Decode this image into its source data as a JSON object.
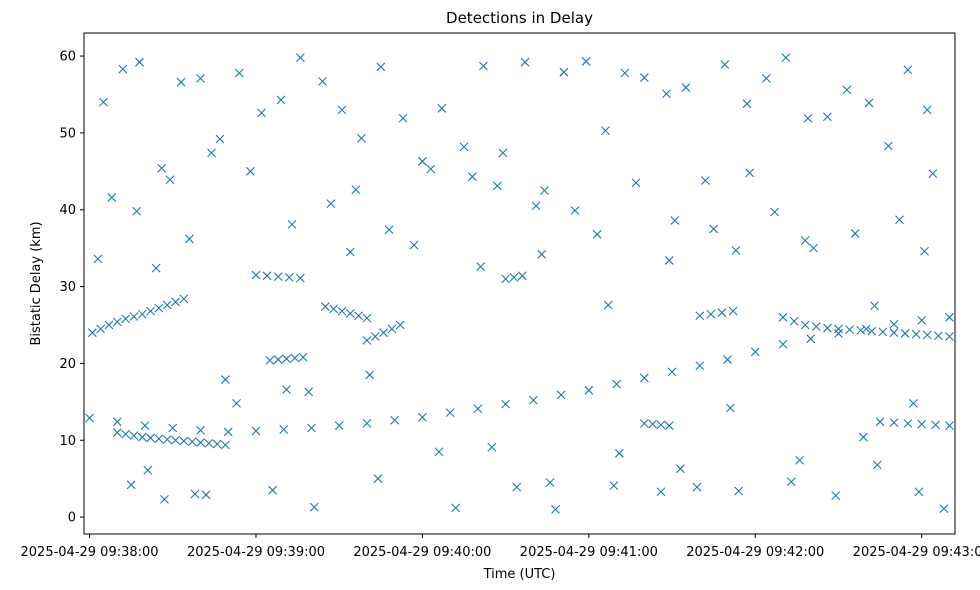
{
  "chart_data": {
    "type": "scatter",
    "title": "Detections in Delay",
    "xlabel": "Time (UTC)",
    "ylabel": "Bistatic Delay (km)",
    "xlim": [
      "2025-04-29 09:37:58",
      "2025-04-29 09:43:12"
    ],
    "ylim": [
      -2.2,
      63
    ],
    "xtick_values": [
      "2025-04-29 09:38:00",
      "2025-04-29 09:39:00",
      "2025-04-29 09:40:00",
      "2025-04-29 09:41:00",
      "2025-04-29 09:42:00",
      "2025-04-29 09:43:00"
    ],
    "xtick_labels": [
      "2025-04-29 09:38:00",
      "2025-04-29 09:39:00",
      "2025-04-29 09:40:00",
      "2025-04-29 09:41:00",
      "2025-04-29 09:42:00",
      "2025-04-29 09:43:00"
    ],
    "ytick_values": [
      0,
      10,
      20,
      30,
      40,
      50,
      60
    ],
    "ytick_labels": [
      "0",
      "10",
      "20",
      "30",
      "40",
      "50",
      "60"
    ],
    "grid": false,
    "marker": "x",
    "color": "#1f77b4",
    "series": [
      {
        "x": [
          "2025-04-29 09:38:00",
          "2025-04-29 09:38:10",
          "2025-04-29 09:38:20",
          "2025-04-29 09:38:30",
          "2025-04-29 09:38:40",
          "2025-04-29 09:38:50",
          "2025-04-29 09:39:00",
          "2025-04-29 09:39:10",
          "2025-04-29 09:39:20",
          "2025-04-29 09:39:30",
          "2025-04-29 09:39:40",
          "2025-04-29 09:39:50",
          "2025-04-29 09:40:00",
          "2025-04-29 09:40:10",
          "2025-04-29 09:40:20",
          "2025-04-29 09:40:30",
          "2025-04-29 09:40:40",
          "2025-04-29 09:40:50",
          "2025-04-29 09:41:00",
          "2025-04-29 09:41:10",
          "2025-04-29 09:41:20",
          "2025-04-29 09:41:30",
          "2025-04-29 09:41:40",
          "2025-04-29 09:41:50",
          "2025-04-29 09:42:00",
          "2025-04-29 09:42:10",
          "2025-04-29 09:42:20",
          "2025-04-29 09:42:30",
          "2025-04-29 09:42:40",
          "2025-04-29 09:42:50",
          "2025-04-29 09:43:00",
          "2025-04-29 09:43:10",
          "2025-04-29 09:38:01",
          "2025-04-29 09:38:04",
          "2025-04-29 09:38:07",
          "2025-04-29 09:38:10",
          "2025-04-29 09:38:13",
          "2025-04-29 09:38:16",
          "2025-04-29 09:38:19",
          "2025-04-29 09:38:22",
          "2025-04-29 09:38:25",
          "2025-04-29 09:38:28",
          "2025-04-29 09:38:31",
          "2025-04-29 09:38:34",
          "2025-04-29 09:38:10",
          "2025-04-29 09:38:13",
          "2025-04-29 09:38:16",
          "2025-04-29 09:38:19",
          "2025-04-29 09:38:22",
          "2025-04-29 09:38:25",
          "2025-04-29 09:38:28",
          "2025-04-29 09:38:31",
          "2025-04-29 09:38:34",
          "2025-04-29 09:38:37",
          "2025-04-29 09:38:40",
          "2025-04-29 09:38:43",
          "2025-04-29 09:38:46",
          "2025-04-29 09:38:49",
          "2025-04-29 09:39:05",
          "2025-04-29 09:39:08",
          "2025-04-29 09:39:11",
          "2025-04-29 09:39:14",
          "2025-04-29 09:39:17",
          "2025-04-29 09:39:00",
          "2025-04-29 09:39:04",
          "2025-04-29 09:39:08",
          "2025-04-29 09:39:12",
          "2025-04-29 09:39:16",
          "2025-04-29 09:39:25",
          "2025-04-29 09:39:28",
          "2025-04-29 09:39:31",
          "2025-04-29 09:39:34",
          "2025-04-29 09:39:37",
          "2025-04-29 09:39:40",
          "2025-04-29 09:39:40",
          "2025-04-29 09:39:43",
          "2025-04-29 09:39:46",
          "2025-04-29 09:39:49",
          "2025-04-29 09:39:52",
          "2025-04-29 09:40:30",
          "2025-04-29 09:40:33",
          "2025-04-29 09:40:36",
          "2025-04-29 09:41:20",
          "2025-04-29 09:41:23",
          "2025-04-29 09:41:26",
          "2025-04-29 09:41:29",
          "2025-04-29 09:41:40",
          "2025-04-29 09:41:44",
          "2025-04-29 09:41:48",
          "2025-04-29 09:41:52",
          "2025-04-29 09:42:10",
          "2025-04-29 09:42:14",
          "2025-04-29 09:42:18",
          "2025-04-29 09:42:22",
          "2025-04-29 09:42:26",
          "2025-04-29 09:42:30",
          "2025-04-29 09:42:34",
          "2025-04-29 09:42:38",
          "2025-04-29 09:42:42",
          "2025-04-29 09:42:46",
          "2025-04-29 09:42:50",
          "2025-04-29 09:42:54",
          "2025-04-29 09:42:58",
          "2025-04-29 09:43:02",
          "2025-04-29 09:43:06",
          "2025-04-29 09:43:10",
          "2025-04-29 09:42:45",
          "2025-04-29 09:42:50",
          "2025-04-29 09:42:55",
          "2025-04-29 09:43:00",
          "2025-04-29 09:43:05",
          "2025-04-29 09:43:10",
          "2025-04-29 09:38:05",
          "2025-04-29 09:38:12",
          "2025-04-29 09:38:18",
          "2025-04-29 09:38:26",
          "2025-04-29 09:38:33",
          "2025-04-29 09:38:40",
          "2025-04-29 09:38:47",
          "2025-04-29 09:38:54",
          "2025-04-29 09:39:02",
          "2025-04-29 09:39:09",
          "2025-04-29 09:39:16",
          "2025-04-29 09:39:24",
          "2025-04-29 09:39:31",
          "2025-04-29 09:39:38",
          "2025-04-29 09:39:45",
          "2025-04-29 09:39:53",
          "2025-04-29 09:40:00",
          "2025-04-29 09:40:07",
          "2025-04-29 09:40:15",
          "2025-04-29 09:40:22",
          "2025-04-29 09:40:29",
          "2025-04-29 09:40:37",
          "2025-04-29 09:40:44",
          "2025-04-29 09:40:51",
          "2025-04-29 09:40:59",
          "2025-04-29 09:41:06",
          "2025-04-29 09:41:13",
          "2025-04-29 09:41:20",
          "2025-04-29 09:41:28",
          "2025-04-29 09:41:35",
          "2025-04-29 09:41:42",
          "2025-04-29 09:41:49",
          "2025-04-29 09:41:57",
          "2025-04-29 09:42:04",
          "2025-04-29 09:42:11",
          "2025-04-29 09:42:19",
          "2025-04-29 09:42:26",
          "2025-04-29 09:42:33",
          "2025-04-29 09:42:41",
          "2025-04-29 09:42:48",
          "2025-04-29 09:42:55",
          "2025-04-29 09:43:02",
          "2025-04-29 09:38:08",
          "2025-04-29 09:38:17",
          "2025-04-29 09:38:29",
          "2025-04-29 09:38:36",
          "2025-04-29 09:38:44",
          "2025-04-29 09:38:58",
          "2025-04-29 09:39:13",
          "2025-04-29 09:39:27",
          "2025-04-29 09:39:36",
          "2025-04-29 09:39:48",
          "2025-04-29 09:40:03",
          "2025-04-29 09:40:18",
          "2025-04-29 09:40:27",
          "2025-04-29 09:40:41",
          "2025-04-29 09:40:55",
          "2025-04-29 09:41:03",
          "2025-04-29 09:41:17",
          "2025-04-29 09:41:31",
          "2025-04-29 09:41:45",
          "2025-04-29 09:41:58",
          "2025-04-29 09:42:07",
          "2025-04-29 09:42:21",
          "2025-04-29 09:42:36",
          "2025-04-29 09:42:52",
          "2025-04-29 09:43:04",
          "2025-04-29 09:38:15",
          "2025-04-29 09:38:27",
          "2025-04-29 09:38:42",
          "2025-04-29 09:39:06",
          "2025-04-29 09:39:21",
          "2025-04-29 09:39:44",
          "2025-04-29 09:40:12",
          "2025-04-29 09:40:34",
          "2025-04-29 09:40:48",
          "2025-04-29 09:41:09",
          "2025-04-29 09:41:26",
          "2025-04-29 09:41:39",
          "2025-04-29 09:41:54",
          "2025-04-29 09:42:13",
          "2025-04-29 09:42:29",
          "2025-04-29 09:42:44",
          "2025-04-29 09:42:59",
          "2025-04-29 09:43:08",
          "2025-04-29 09:38:21",
          "2025-04-29 09:38:38",
          "2025-04-29 09:38:53",
          "2025-04-29 09:39:19",
          "2025-04-29 09:39:41",
          "2025-04-29 09:40:06",
          "2025-04-29 09:40:25",
          "2025-04-29 09:40:46",
          "2025-04-29 09:41:11",
          "2025-04-29 09:41:33",
          "2025-04-29 09:41:51",
          "2025-04-29 09:42:16",
          "2025-04-29 09:42:39",
          "2025-04-29 09:42:57",
          "2025-04-29 09:38:03",
          "2025-04-29 09:38:24",
          "2025-04-29 09:38:49",
          "2025-04-29 09:39:11",
          "2025-04-29 09:39:34",
          "2025-04-29 09:39:57",
          "2025-04-29 09:40:21",
          "2025-04-29 09:40:43",
          "2025-04-29 09:41:07",
          "2025-04-29 09:41:29",
          "2025-04-29 09:41:53",
          "2025-04-29 09:42:18",
          "2025-04-29 09:42:43",
          "2025-04-29 09:43:01"
        ],
        "y": [
          12.9,
          12.4,
          11.9,
          11.6,
          11.3,
          11.1,
          11.2,
          11.4,
          11.6,
          11.9,
          12.2,
          12.6,
          13.0,
          13.6,
          14.1,
          14.7,
          15.2,
          15.9,
          16.5,
          17.3,
          18.1,
          18.9,
          19.7,
          20.5,
          21.5,
          22.5,
          23.2,
          23.9,
          24.5,
          25.1,
          25.6,
          26.0,
          24.0,
          24.5,
          25.0,
          25.4,
          25.8,
          26.1,
          26.4,
          26.8,
          27.2,
          27.6,
          28.0,
          28.4,
          11.0,
          10.8,
          10.6,
          10.4,
          10.3,
          10.2,
          10.1,
          10.0,
          9.9,
          9.8,
          9.7,
          9.6,
          9.5,
          9.4,
          20.4,
          20.5,
          20.6,
          20.7,
          20.8,
          31.5,
          31.4,
          31.3,
          31.2,
          31.1,
          27.4,
          27.1,
          26.8,
          26.5,
          26.2,
          25.9,
          23.0,
          23.5,
          24.0,
          24.5,
          25.0,
          31.0,
          31.2,
          31.4,
          12.2,
          12.1,
          12.0,
          11.9,
          26.2,
          26.4,
          26.6,
          26.8,
          26.0,
          25.5,
          25.0,
          24.8,
          24.6,
          24.5,
          24.4,
          24.3,
          24.2,
          24.1,
          24.0,
          23.9,
          23.8,
          23.7,
          23.6,
          23.5,
          12.4,
          12.3,
          12.2,
          12.1,
          12.0,
          11.9,
          54.0,
          58.3,
          59.2,
          45.4,
          56.6,
          57.1,
          49.2,
          57.8,
          52.6,
          54.3,
          59.8,
          56.7,
          53.0,
          49.3,
          58.6,
          51.9,
          46.3,
          53.2,
          48.2,
          58.7,
          47.4,
          59.2,
          42.5,
          57.9,
          59.3,
          50.3,
          57.8,
          57.2,
          55.1,
          55.9,
          43.8,
          58.9,
          53.8,
          57.1,
          59.8,
          51.9,
          52.1,
          55.6,
          53.9,
          48.3,
          58.2,
          53.0,
          41.6,
          39.8,
          43.9,
          36.2,
          47.4,
          45.0,
          38.1,
          40.8,
          42.6,
          37.4,
          45.3,
          44.3,
          43.1,
          40.5,
          39.9,
          36.8,
          43.5,
          38.6,
          37.5,
          44.8,
          39.7,
          35.0,
          36.9,
          38.7,
          44.7,
          4.2,
          2.3,
          2.9,
          3.5,
          1.3,
          5.0,
          1.2,
          3.9,
          1.0,
          4.1,
          3.3,
          3.9,
          3.4,
          4.6,
          2.8,
          6.8,
          3.3,
          1.1,
          6.1,
          3.0,
          14.8,
          16.3,
          18.5,
          8.5,
          9.1,
          4.5,
          8.3,
          6.3,
          14.2,
          7.4,
          10.4,
          14.8,
          33.6,
          32.4,
          17.9,
          16.6,
          34.5,
          35.4,
          32.6,
          34.2,
          27.6,
          33.4,
          34.7,
          36.0,
          27.5,
          34.6
        ]
      }
    ]
  }
}
